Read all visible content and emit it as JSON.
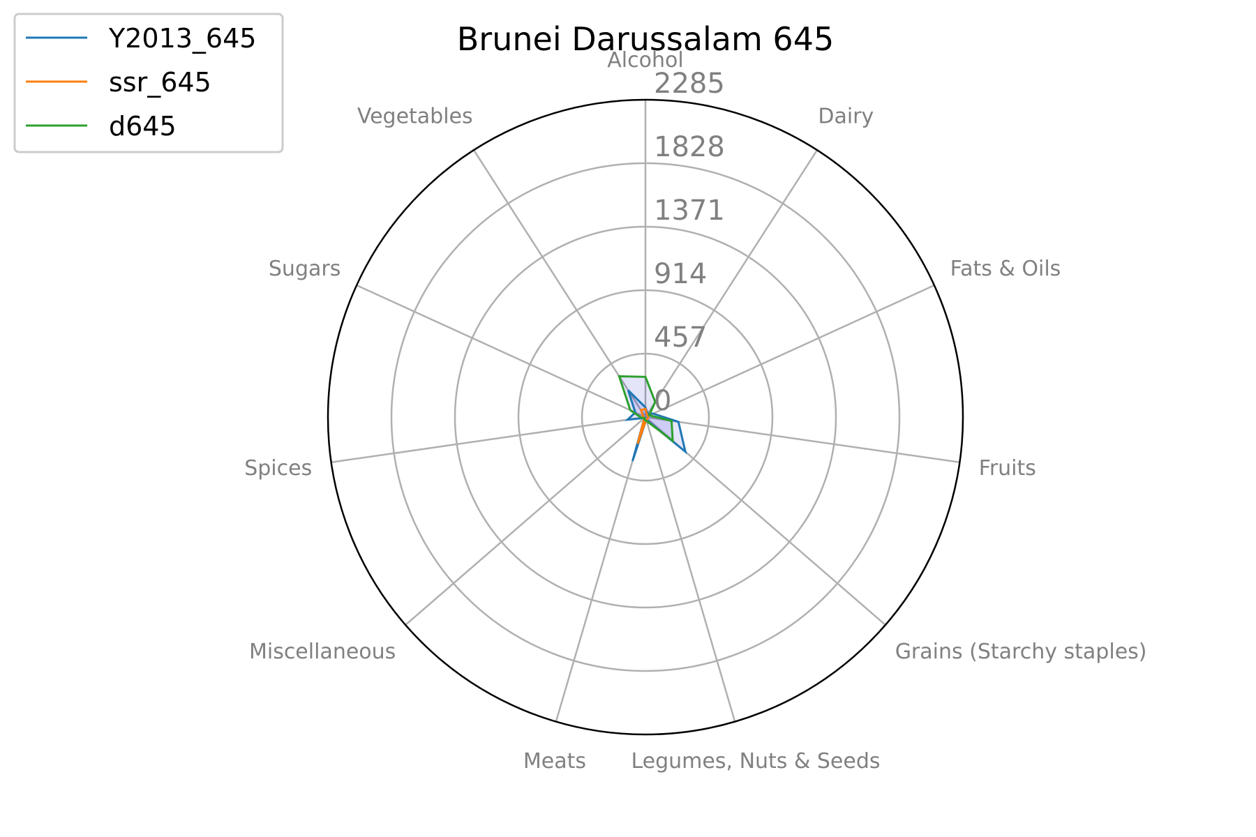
{
  "chart_data": {
    "type": "radar",
    "title": "Brunei Darussalam 645",
    "categories": [
      "Alcohol",
      "Dairy",
      "Fats & Oils",
      "Fruits",
      "Grains (Starchy staples)",
      "Legumes, Nuts & Seeds",
      "Meats",
      "Miscellaneous",
      "Spices",
      "Sugars",
      "Vegetables"
    ],
    "rticks": [
      "0",
      "457",
      "914",
      "1371",
      "1828",
      "2285"
    ],
    "rmax": 2285,
    "series": [
      {
        "name": "Y2013_645",
        "color": "#1f77b4",
        "values": [
          70,
          30,
          60,
          240,
          380,
          20,
          330,
          10,
          130,
          80,
          230
        ]
      },
      {
        "name": "ssr_645",
        "color": "#ff7f0e",
        "values": [
          60,
          20,
          20,
          20,
          20,
          20,
          200,
          10,
          10,
          20,
          60
        ]
      },
      {
        "name": "d645",
        "color": "#2ca02c",
        "values": [
          290,
          130,
          30,
          190,
          260,
          30,
          20,
          10,
          30,
          120,
          350
        ]
      }
    ],
    "fill_color": "#0000cc",
    "grid": true,
    "legend_position": "top-left"
  }
}
